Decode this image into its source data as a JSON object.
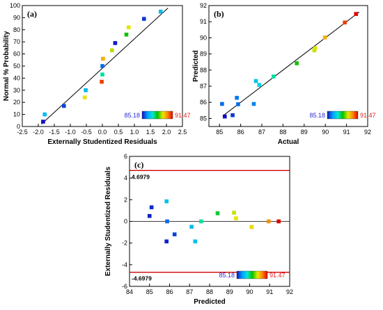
{
  "colorbar": {
    "min_label": "85.18",
    "max_label": "91.47",
    "min": 85.18,
    "max": 91.47
  },
  "chart_data": [
    {
      "panel": "(a)",
      "type": "scatter",
      "xlabel": "Externally Studentized Residuals",
      "ylabel": "Normal % Probability",
      "xlim": [
        -2.5,
        2.5
      ],
      "ylim": [
        0,
        100
      ],
      "xticks": [
        "-2.5",
        "-2.0",
        "-1.5",
        "-1.0",
        "-0.5",
        "0.0",
        "0.5",
        "1.0",
        "1.5",
        "2.0",
        "2.5"
      ],
      "yticks": [
        "0",
        "10",
        "20",
        "30",
        "40",
        "50",
        "60",
        "70",
        "80",
        "90",
        "100"
      ],
      "points": [
        {
          "x": -1.85,
          "y": 4,
          "c": 85.2
        },
        {
          "x": -1.8,
          "y": 10,
          "c": 86.7
        },
        {
          "x": -1.2,
          "y": 17,
          "c": 85.6
        },
        {
          "x": -0.55,
          "y": 24,
          "c": 89.5
        },
        {
          "x": -0.52,
          "y": 30,
          "c": 86.7
        },
        {
          "x": -0.02,
          "y": 37,
          "c": 91.0
        },
        {
          "x": 0.0,
          "y": 43,
          "c": 87.6
        },
        {
          "x": 0.0,
          "y": 50,
          "c": 85.9
        },
        {
          "x": 0.02,
          "y": 56,
          "c": 90.0
        },
        {
          "x": 0.3,
          "y": 63,
          "c": 89.2
        },
        {
          "x": 0.4,
          "y": 69,
          "c": 85.3
        },
        {
          "x": 0.75,
          "y": 76,
          "c": 88.4
        },
        {
          "x": 0.82,
          "y": 82,
          "c": 89.5
        },
        {
          "x": 1.3,
          "y": 89,
          "c": 85.5
        },
        {
          "x": 1.82,
          "y": 95,
          "c": 86.7
        }
      ],
      "line": {
        "x": [
          -1.9,
          2.05
        ],
        "y": [
          2,
          98
        ]
      }
    },
    {
      "panel": "(b)",
      "type": "scatter",
      "xlabel": "Actual",
      "ylabel": "Predicted",
      "xlim": [
        84.5,
        92
      ],
      "ylim": [
        84.5,
        92
      ],
      "xticks": [
        "85",
        "86",
        "87",
        "88",
        "89",
        "90",
        "91",
        "92"
      ],
      "yticks": [
        "85",
        "86",
        "87",
        "88",
        "89",
        "90",
        "91",
        "92"
      ],
      "points": [
        {
          "x": 85.12,
          "y": 85.9,
          "c": 85.9
        },
        {
          "x": 85.25,
          "y": 85.12,
          "c": 85.18
        },
        {
          "x": 85.62,
          "y": 85.2,
          "c": 85.5
        },
        {
          "x": 85.82,
          "y": 86.28,
          "c": 86.0
        },
        {
          "x": 85.88,
          "y": 85.88,
          "c": 85.9
        },
        {
          "x": 86.62,
          "y": 85.9,
          "c": 86.1
        },
        {
          "x": 86.72,
          "y": 87.32,
          "c": 86.8
        },
        {
          "x": 86.88,
          "y": 87.08,
          "c": 87.0
        },
        {
          "x": 87.55,
          "y": 87.6,
          "c": 87.6
        },
        {
          "x": 88.65,
          "y": 88.42,
          "c": 88.4
        },
        {
          "x": 89.48,
          "y": 89.22,
          "c": 89.3
        },
        {
          "x": 89.52,
          "y": 89.35,
          "c": 89.4
        },
        {
          "x": 89.98,
          "y": 90.02,
          "c": 90.0
        },
        {
          "x": 90.92,
          "y": 90.95,
          "c": 91.0
        },
        {
          "x": 91.45,
          "y": 91.48,
          "c": 91.47
        }
      ],
      "line": {
        "x": [
          85.15,
          91.6
        ],
        "y": [
          85.15,
          91.6
        ]
      }
    },
    {
      "panel": "(c)",
      "type": "scatter",
      "xlabel": "Predicted",
      "ylabel": "Externally Studentized Residuals",
      "xlim": [
        84,
        92
      ],
      "ylim": [
        -6,
        6
      ],
      "xticks": [
        "84",
        "85",
        "86",
        "87",
        "88",
        "89",
        "90",
        "91",
        "92"
      ],
      "yticks": [
        "-6",
        "-4",
        "-2",
        "0",
        "2",
        "4",
        "6"
      ],
      "points": [
        {
          "x": 85.0,
          "y": 0.5,
          "c": 85.3
        },
        {
          "x": 85.1,
          "y": 1.3,
          "c": 85.4
        },
        {
          "x": 85.85,
          "y": 1.85,
          "c": 86.8
        },
        {
          "x": 85.88,
          "y": 0.0,
          "c": 85.9
        },
        {
          "x": 85.85,
          "y": -1.85,
          "c": 85.3
        },
        {
          "x": 86.25,
          "y": -1.2,
          "c": 85.6
        },
        {
          "x": 87.1,
          "y": -0.5,
          "c": 86.7
        },
        {
          "x": 87.28,
          "y": -1.85,
          "c": 86.8
        },
        {
          "x": 87.58,
          "y": 0.0,
          "c": 87.6
        },
        {
          "x": 88.4,
          "y": 0.75,
          "c": 88.1
        },
        {
          "x": 89.22,
          "y": 0.8,
          "c": 89.3
        },
        {
          "x": 89.32,
          "y": 0.28,
          "c": 89.5
        },
        {
          "x": 90.1,
          "y": -0.52,
          "c": 89.6
        },
        {
          "x": 90.95,
          "y": 0.0,
          "c": 90.3
        },
        {
          "x": 91.45,
          "y": 0.0,
          "c": 91.47
        }
      ],
      "hlines": [
        {
          "y": 4.6979,
          "label": "4.6979"
        },
        {
          "y": -4.6979,
          "label": "-4.6979"
        }
      ]
    }
  ]
}
